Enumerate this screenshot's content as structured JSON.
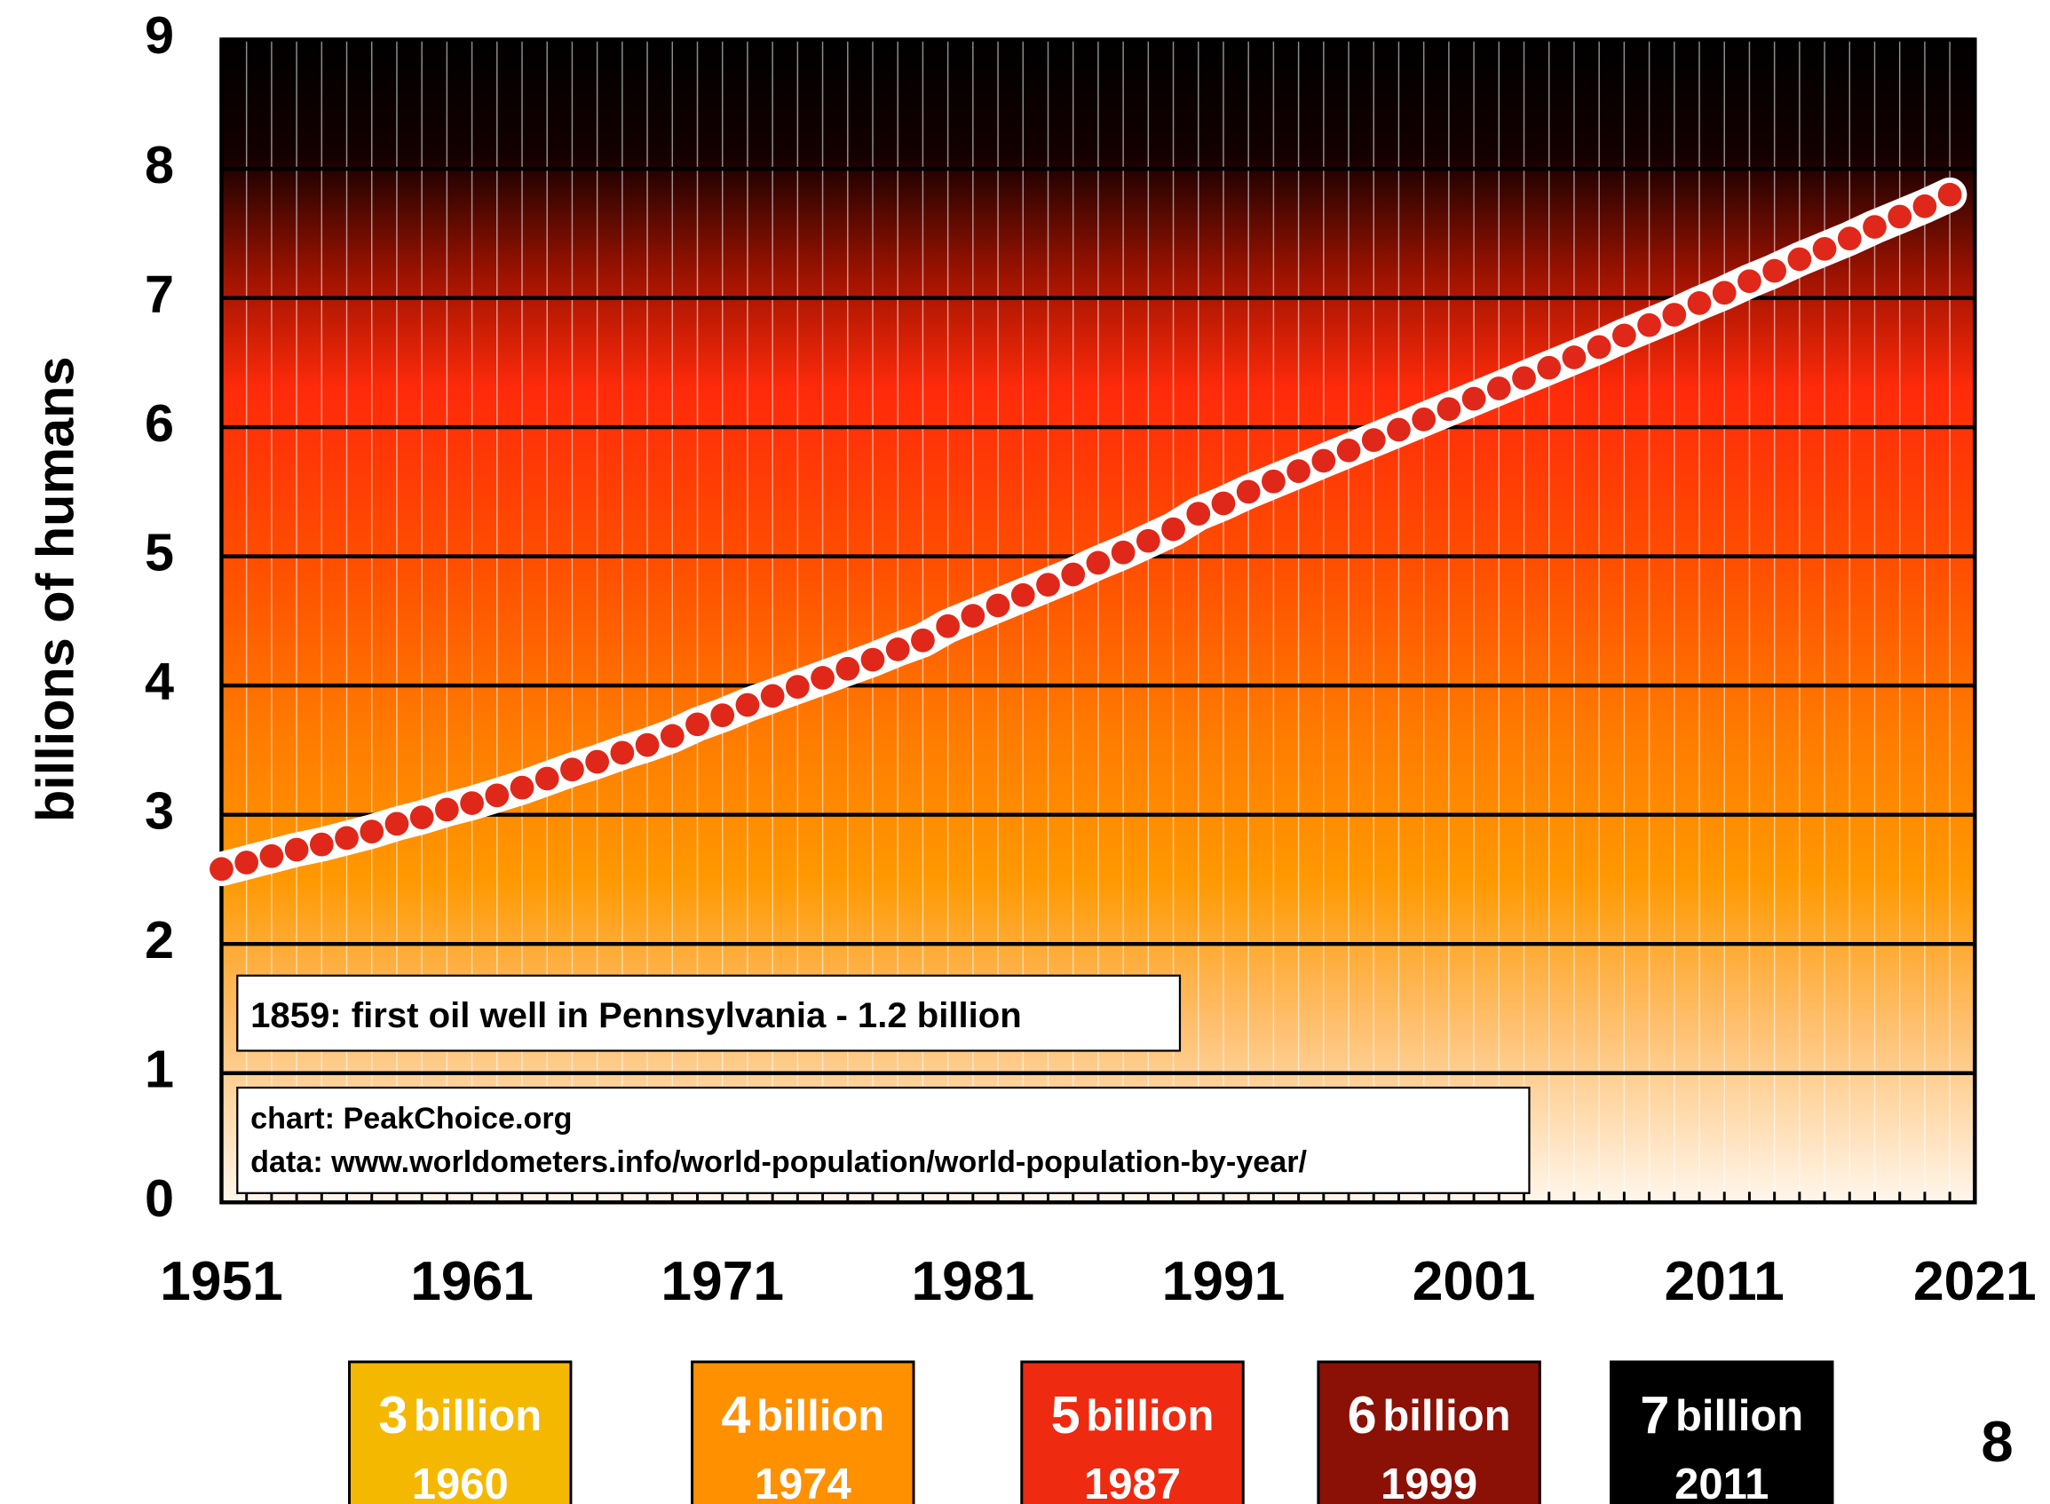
{
  "chart_data": {
    "type": "scatter",
    "y_axis_label": "billions of humans",
    "x": [
      1951,
      1952,
      1953,
      1954,
      1955,
      1956,
      1957,
      1958,
      1959,
      1960,
      1961,
      1962,
      1963,
      1964,
      1965,
      1966,
      1967,
      1968,
      1969,
      1970,
      1971,
      1972,
      1973,
      1974,
      1975,
      1976,
      1977,
      1978,
      1979,
      1980,
      1981,
      1982,
      1983,
      1984,
      1985,
      1986,
      1987,
      1988,
      1989,
      1990,
      1991,
      1992,
      1993,
      1994,
      1995,
      1996,
      1997,
      1998,
      1999,
      2000,
      2001,
      2002,
      2003,
      2004,
      2005,
      2006,
      2007,
      2008,
      2009,
      2010,
      2011,
      2012,
      2013,
      2014,
      2015,
      2016,
      2017,
      2018,
      2019,
      2020
    ],
    "series": [
      {
        "color": "#e0281a",
        "values": [
          2.58,
          2.63,
          2.68,
          2.73,
          2.77,
          2.82,
          2.87,
          2.93,
          2.98,
          3.04,
          3.09,
          3.15,
          3.21,
          3.28,
          3.35,
          3.41,
          3.48,
          3.54,
          3.61,
          3.7,
          3.77,
          3.85,
          3.92,
          3.99,
          4.06,
          4.13,
          4.2,
          4.28,
          4.35,
          4.46,
          4.54,
          4.62,
          4.7,
          4.78,
          4.86,
          4.95,
          5.03,
          5.12,
          5.21,
          5.33,
          5.41,
          5.5,
          5.58,
          5.66,
          5.74,
          5.82,
          5.9,
          5.98,
          6.06,
          6.14,
          6.22,
          6.3,
          6.38,
          6.46,
          6.54,
          6.62,
          6.71,
          6.79,
          6.87,
          6.96,
          7.04,
          7.13,
          7.21,
          7.3,
          7.38,
          7.46,
          7.55,
          7.63,
          7.71,
          7.8
        ]
      }
    ],
    "xlim": [
      1951,
      2021
    ],
    "xticks": [
      1951,
      1961,
      1971,
      1981,
      1991,
      2001,
      2011,
      2021
    ],
    "ylim": [
      0,
      9
    ],
    "yticks": [
      0,
      1,
      2,
      3,
      4,
      5,
      6,
      7,
      8,
      9
    ],
    "grid": true,
    "annotations": [
      "1859: first oil well in Pennsylvania - 1.2 billion",
      "chart: PeakChoice.org",
      "data: www.worldometers.info/world-population/world-population-by-year/"
    ],
    "milestones": [
      {
        "count": "3",
        "unit": "billion",
        "year": "1960",
        "color": "#f5b800"
      },
      {
        "count": "4",
        "unit": "billion",
        "year": "1974",
        "color": "#ff9000"
      },
      {
        "count": "5",
        "unit": "billion",
        "year": "1987",
        "color": "#ee2a10"
      },
      {
        "count": "6",
        "unit": "billion",
        "year": "1999",
        "color": "#8b1005"
      },
      {
        "count": "7",
        "unit": "billion",
        "year": "2011",
        "color": "#000000"
      }
    ],
    "trailing_label": "8"
  }
}
